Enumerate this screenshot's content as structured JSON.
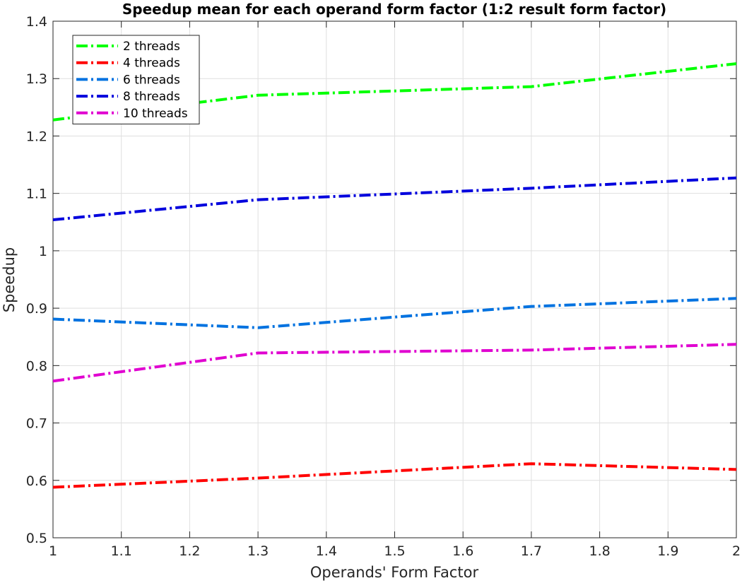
{
  "chart_data": {
    "type": "line",
    "title": "Speedup mean for each operand form factor (1:2 result form factor)",
    "xlabel": "Operands' Form Factor",
    "ylabel": "Speedup",
    "xlim": [
      1,
      2
    ],
    "ylim": [
      0.5,
      1.4
    ],
    "xticks": [
      "1",
      "1.1",
      "1.2",
      "1.3",
      "1.4",
      "1.5",
      "1.6",
      "1.7",
      "1.8",
      "1.9",
      "2"
    ],
    "yticks": [
      "0.5",
      "0.6",
      "0.7",
      "0.8",
      "0.9",
      "1",
      "1.1",
      "1.2",
      "1.3",
      "1.4"
    ],
    "grid": true,
    "legend_position": "top-left",
    "x": [
      1,
      1.3,
      1.7,
      2
    ],
    "series": [
      {
        "name": "2 threads",
        "color": "#00ff00",
        "values": [
          1.228,
          1.271,
          1.286,
          1.326
        ]
      },
      {
        "name": "4 threads",
        "color": "#ff0000",
        "values": [
          0.588,
          0.604,
          0.629,
          0.619
        ]
      },
      {
        "name": "6 threads",
        "color": "#0072e0",
        "values": [
          0.881,
          0.866,
          0.903,
          0.917
        ]
      },
      {
        "name": "8 threads",
        "color": "#0000dd",
        "values": [
          1.054,
          1.089,
          1.109,
          1.127
        ]
      },
      {
        "name": "10 threads",
        "color": "#e000d0",
        "values": [
          0.773,
          0.822,
          0.827,
          0.837
        ]
      }
    ]
  }
}
